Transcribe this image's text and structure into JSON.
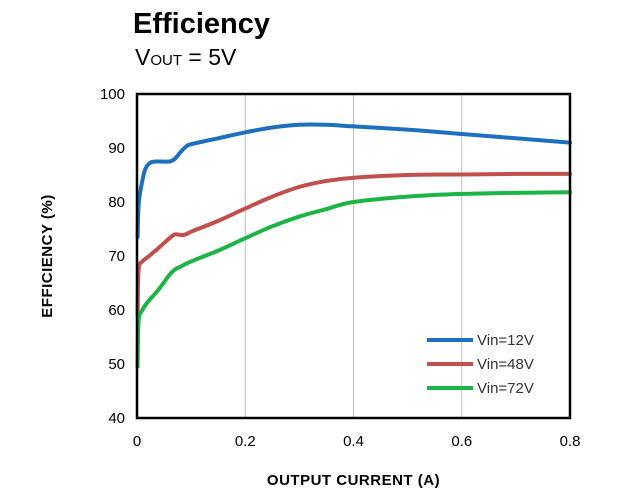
{
  "title": "Efficiency",
  "subtitle": {
    "prefix": "V",
    "sub": "OUT",
    "rest": " = 5V"
  },
  "chart_data": {
    "type": "line",
    "xlabel": "OUTPUT CURRENT (A)",
    "ylabel": "EFFICIENCY (%)",
    "xlim": [
      0,
      0.8
    ],
    "ylim": [
      40,
      100
    ],
    "xticks": [
      "0",
      "0.2",
      "0.4",
      "0.6",
      "0.8"
    ],
    "yticks": [
      "40",
      "50",
      "60",
      "70",
      "80",
      "90",
      "100"
    ],
    "grid": "vertical",
    "legend_position": "bottom-right",
    "series": [
      {
        "name": "Vin=12V",
        "color": "#1f6fbf",
        "x": [
          0.001,
          0.003,
          0.008,
          0.015,
          0.025,
          0.04,
          0.06,
          0.07,
          0.08,
          0.09,
          0.1,
          0.15,
          0.2,
          0.25,
          0.3,
          0.35,
          0.4,
          0.5,
          0.6,
          0.7,
          0.8
        ],
        "y": [
          73.5,
          79.5,
          83,
          86,
          87.3,
          87.5,
          87.5,
          88,
          89.2,
          90.2,
          90.7,
          91.8,
          92.9,
          93.8,
          94.3,
          94.3,
          94,
          93.4,
          92.6,
          91.8,
          91
        ]
      },
      {
        "name": "Vin=48V",
        "color": "#c0504d",
        "x": [
          0.001,
          0.003,
          0.01,
          0.02,
          0.04,
          0.06,
          0.07,
          0.08,
          0.09,
          0.1,
          0.15,
          0.2,
          0.25,
          0.3,
          0.35,
          0.4,
          0.5,
          0.6,
          0.7,
          0.8
        ],
        "y": [
          59,
          67.5,
          69,
          69.8,
          71.5,
          73.3,
          74,
          73.9,
          74,
          74.5,
          76.5,
          78.8,
          81,
          82.8,
          83.9,
          84.5,
          85,
          85.1,
          85.2,
          85.2
        ]
      },
      {
        "name": "Vin=72V",
        "color": "#1db446",
        "x": [
          0.001,
          0.003,
          0.01,
          0.02,
          0.04,
          0.06,
          0.07,
          0.08,
          0.1,
          0.15,
          0.2,
          0.25,
          0.3,
          0.35,
          0.4,
          0.5,
          0.6,
          0.7,
          0.8
        ],
        "y": [
          49.5,
          58,
          60,
          61.5,
          63.8,
          66.5,
          67.5,
          68,
          69,
          71,
          73.3,
          75.5,
          77.3,
          78.7,
          80,
          81,
          81.5,
          81.7,
          81.8
        ]
      }
    ]
  }
}
